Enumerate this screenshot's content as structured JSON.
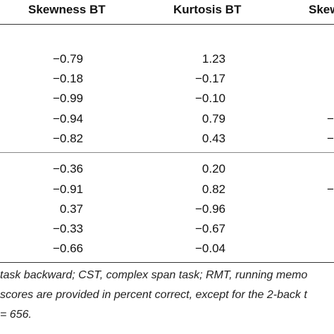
{
  "table": {
    "headers": {
      "skewness": "Skewness BT",
      "kurtosis": "Kurtosis BT",
      "clipped_next": "Skew"
    },
    "group1": [
      {
        "skewness": "−0.79",
        "kurtosis": "1.23",
        "clipped": ""
      },
      {
        "skewness": "−0.18",
        "kurtosis": "−0.17",
        "clipped": ""
      },
      {
        "skewness": "−0.99",
        "kurtosis": "−0.10",
        "clipped": ""
      },
      {
        "skewness": "−0.94",
        "kurtosis": "0.79",
        "clipped": "−"
      },
      {
        "skewness": "−0.82",
        "kurtosis": "0.43",
        "clipped": "−"
      }
    ],
    "group2": [
      {
        "skewness": "−0.36",
        "kurtosis": "0.20",
        "clipped": ""
      },
      {
        "skewness": "−0.91",
        "kurtosis": "0.82",
        "clipped": "−"
      },
      {
        "skewness": "0.37",
        "kurtosis": "−0.96",
        "clipped": ""
      },
      {
        "skewness": "−0.33",
        "kurtosis": "−0.67",
        "clipped": ""
      },
      {
        "skewness": "−0.66",
        "kurtosis": "−0.04",
        "clipped": ""
      }
    ]
  },
  "footnote": {
    "line1": "task backward; CST, complex span task; RMT, running memo",
    "line2": "scores are provided in percent correct, except for the 2-back t",
    "line3": "= 656."
  }
}
